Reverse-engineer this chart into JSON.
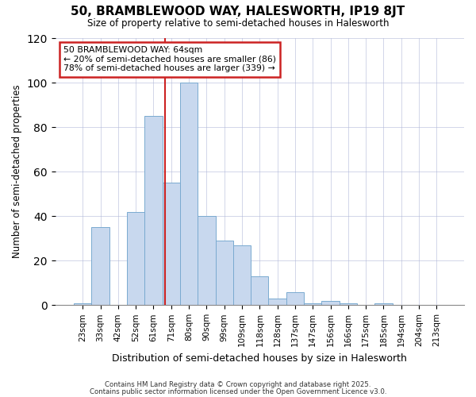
{
  "title1": "50, BRAMBLEWOOD WAY, HALESWORTH, IP19 8JT",
  "title2": "Size of property relative to semi-detached houses in Halesworth",
  "xlabel": "Distribution of semi-detached houses by size in Halesworth",
  "ylabel": "Number of semi-detached properties",
  "bar_labels": [
    "23sqm",
    "33sqm",
    "42sqm",
    "52sqm",
    "61sqm",
    "71sqm",
    "80sqm",
    "90sqm",
    "99sqm",
    "109sqm",
    "118sqm",
    "128sqm",
    "137sqm",
    "147sqm",
    "156sqm",
    "166sqm",
    "175sqm",
    "185sqm",
    "194sqm",
    "204sqm",
    "213sqm"
  ],
  "bar_values": [
    1,
    35,
    0,
    42,
    85,
    55,
    100,
    40,
    29,
    27,
    13,
    3,
    6,
    1,
    2,
    1,
    0,
    1,
    0,
    0,
    0
  ],
  "bar_color": "#c8d8ee",
  "bar_edge_color": "#7aaad0",
  "red_line_x": 4.65,
  "annotation_title": "50 BRAMBLEWOOD WAY: 64sqm",
  "annotation_line1": "← 20% of semi-detached houses are smaller (86)",
  "annotation_line2": "78% of semi-detached houses are larger (339) →",
  "annotation_box_color": "#ffffff",
  "annotation_box_edge": "#cc2222",
  "red_line_color": "#cc2222",
  "ylim": [
    0,
    120
  ],
  "yticks": [
    0,
    20,
    40,
    60,
    80,
    100,
    120
  ],
  "grid_color": "#b0b8d8",
  "background_color": "#ffffff",
  "footer1": "Contains HM Land Registry data © Crown copyright and database right 2025.",
  "footer2": "Contains public sector information licensed under the Open Government Licence v3.0."
}
